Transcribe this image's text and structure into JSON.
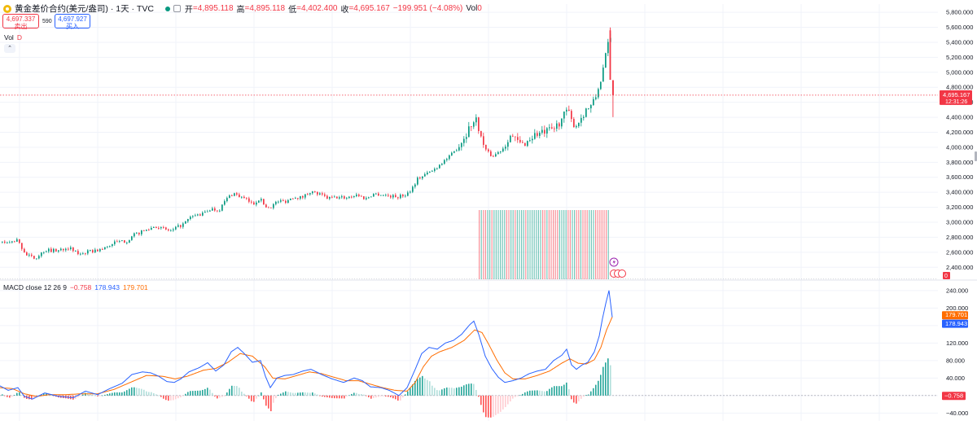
{
  "header": {
    "symbol": "黄金差价合约(美元/盎司) · 1天 · TVC",
    "open_label": "开",
    "open": "=4,895.118",
    "high_label": "高",
    "high": "=4,895.118",
    "low_label": "低",
    "low": "=4,402.400",
    "close_label": "收",
    "close": "=4,695.167",
    "change": "−199.951 (−4.08%)",
    "vol_label": "Vol",
    "vol_value": "0"
  },
  "trade": {
    "sell_price": "4,697.337",
    "sell_label": "卖出",
    "spread": "590",
    "buy_price": "4,697.927",
    "buy_label": "买入"
  },
  "volume_legend": {
    "label": "Vol",
    "value": "D"
  },
  "collapse_icon": "chevron-up-icon",
  "price_scale_label": "0",
  "macd_legend": {
    "name": "MACD close 12 26 9",
    "hist": "−0.758",
    "macd": "178.943",
    "signal": "179.701"
  },
  "colors": {
    "up": "#089981",
    "down": "#f23645",
    "macd": "#2962ff",
    "signal": "#ff6d00",
    "grid": "#f0f3fa",
    "text": "#131722"
  },
  "chart_data": [
    {
      "type": "candlestick",
      "title": "",
      "y_ticks": [
        2400,
        2600,
        2800,
        3000,
        3200,
        3400,
        3600,
        3800,
        4000,
        4200,
        4400,
        4600,
        4800,
        5000,
        5200,
        5400,
        5600,
        5800
      ],
      "y_tick_labels": [
        "2,400.000",
        "2,600.000",
        "2,800.000",
        "3,000.000",
        "3,200.000",
        "3,400.000",
        "3,600.000",
        "3,800.000",
        "4,000.000",
        "4,200.000",
        "4,400.000",
        "4,600.000",
        "4,800.000",
        "5,000.000",
        "5,200.000",
        "5,400.000",
        "5,600.000",
        "5,800.000"
      ],
      "ylim": [
        2240,
        5910
      ],
      "last_price": 4695.167,
      "last_price_label": "4,695.167",
      "countdown": "12:31:26",
      "grid": true,
      "path_keypoints": [
        [
          0,
          2740
        ],
        [
          10,
          2720
        ],
        [
          20,
          2760
        ],
        [
          32,
          2560
        ],
        [
          42,
          2520
        ],
        [
          55,
          2630
        ],
        [
          70,
          2620
        ],
        [
          82,
          2670
        ],
        [
          95,
          2580
        ],
        [
          110,
          2610
        ],
        [
          125,
          2640
        ],
        [
          140,
          2730
        ],
        [
          155,
          2750
        ],
        [
          165,
          2840
        ],
        [
          180,
          2900
        ],
        [
          190,
          2950
        ],
        [
          200,
          2910
        ],
        [
          210,
          2880
        ],
        [
          218,
          2940
        ],
        [
          225,
          2980
        ],
        [
          235,
          3080
        ],
        [
          248,
          3110
        ],
        [
          258,
          3180
        ],
        [
          268,
          3160
        ],
        [
          278,
          3320
        ],
        [
          286,
          3390
        ],
        [
          294,
          3340
        ],
        [
          302,
          3300
        ],
        [
          310,
          3240
        ],
        [
          318,
          3320
        ],
        [
          326,
          3200
        ],
        [
          332,
          3210
        ],
        [
          340,
          3280
        ],
        [
          350,
          3280
        ],
        [
          360,
          3340
        ],
        [
          370,
          3330
        ],
        [
          380,
          3410
        ],
        [
          392,
          3370
        ],
        [
          402,
          3320
        ],
        [
          412,
          3330
        ],
        [
          425,
          3330
        ],
        [
          438,
          3370
        ],
        [
          448,
          3310
        ],
        [
          458,
          3380
        ],
        [
          468,
          3370
        ],
        [
          478,
          3350
        ],
        [
          488,
          3340
        ],
        [
          498,
          3370
        ],
        [
          505,
          3450
        ],
        [
          512,
          3580
        ],
        [
          522,
          3640
        ],
        [
          532,
          3700
        ],
        [
          542,
          3800
        ],
        [
          552,
          3880
        ],
        [
          560,
          3980
        ],
        [
          570,
          4150
        ],
        [
          578,
          4310
        ],
        [
          585,
          4370
        ],
        [
          590,
          4120
        ],
        [
          597,
          3940
        ],
        [
          604,
          3880
        ],
        [
          612,
          3940
        ],
        [
          618,
          4000
        ],
        [
          625,
          4170
        ],
        [
          632,
          4100
        ],
        [
          640,
          4030
        ],
        [
          648,
          4090
        ],
        [
          656,
          4170
        ],
        [
          665,
          4190
        ],
        [
          672,
          4210
        ],
        [
          680,
          4250
        ],
        [
          688,
          4360
        ],
        [
          696,
          4500
        ],
        [
          702,
          4320
        ],
        [
          708,
          4300
        ],
        [
          714,
          4420
        ],
        [
          720,
          4520
        ],
        [
          726,
          4550
        ],
        [
          732,
          4700
        ],
        [
          738,
          4950
        ],
        [
          742,
          5150
        ],
        [
          746,
          5380
        ],
        [
          749,
          5450
        ],
        [
          751,
          4695
        ]
      ],
      "candles": [
        {
          "open": 4895.118,
          "high": 4895.118,
          "low": 4402.4,
          "close": 4695.167
        }
      ]
    },
    {
      "type": "bar",
      "title": "Vol",
      "note": "uniform volume bars across the recent sessions",
      "values": [
        1
      ]
    },
    {
      "type": "line",
      "title": "MACD close 12 26 9",
      "y_ticks": [
        -40,
        0,
        40,
        80,
        120,
        160,
        200,
        240
      ],
      "y_tick_labels": [
        "−40.000",
        "0",
        "40.000",
        "80.000",
        "120.000",
        "160.000",
        "200.000",
        "240.000"
      ],
      "ylim": [
        -58,
        262
      ],
      "grid": true,
      "series": [
        {
          "name": "MACD",
          "color": "#2962ff",
          "last": 178.943,
          "last_label": "178.943"
        },
        {
          "name": "Signal",
          "color": "#ff6d00",
          "last": 179.701,
          "last_label": "179.701"
        },
        {
          "name": "Histogram",
          "last": -0.758,
          "last_label": "−0.758"
        }
      ],
      "macd_keypoints": [
        [
          0,
          22
        ],
        [
          10,
          12
        ],
        [
          22,
          18
        ],
        [
          30,
          -2
        ],
        [
          40,
          -8
        ],
        [
          55,
          6
        ],
        [
          72,
          -2
        ],
        [
          90,
          -5
        ],
        [
          105,
          10
        ],
        [
          120,
          2
        ],
        [
          135,
          16
        ],
        [
          150,
          28
        ],
        [
          162,
          48
        ],
        [
          175,
          54
        ],
        [
          185,
          52
        ],
        [
          195,
          44
        ],
        [
          205,
          32
        ],
        [
          214,
          30
        ],
        [
          222,
          38
        ],
        [
          232,
          54
        ],
        [
          245,
          64
        ],
        [
          255,
          75
        ],
        [
          265,
          56
        ],
        [
          275,
          70
        ],
        [
          284,
          100
        ],
        [
          292,
          110
        ],
        [
          300,
          96
        ],
        [
          310,
          76
        ],
        [
          320,
          80
        ],
        [
          326,
          44
        ],
        [
          332,
          18
        ],
        [
          340,
          40
        ],
        [
          350,
          46
        ],
        [
          360,
          48
        ],
        [
          372,
          56
        ],
        [
          382,
          60
        ],
        [
          395,
          48
        ],
        [
          408,
          38
        ],
        [
          422,
          30
        ],
        [
          435,
          40
        ],
        [
          445,
          34
        ],
        [
          455,
          20
        ],
        [
          468,
          18
        ],
        [
          478,
          12
        ],
        [
          490,
          0
        ],
        [
          500,
          18
        ],
        [
          510,
          60
        ],
        [
          518,
          96
        ],
        [
          527,
          110
        ],
        [
          537,
          106
        ],
        [
          547,
          120
        ],
        [
          557,
          126
        ],
        [
          567,
          140
        ],
        [
          577,
          162
        ],
        [
          582,
          170
        ],
        [
          588,
          140
        ],
        [
          596,
          90
        ],
        [
          604,
          62
        ],
        [
          612,
          42
        ],
        [
          620,
          30
        ],
        [
          630,
          34
        ],
        [
          640,
          40
        ],
        [
          650,
          50
        ],
        [
          660,
          56
        ],
        [
          670,
          60
        ],
        [
          680,
          80
        ],
        [
          690,
          92
        ],
        [
          696,
          106
        ],
        [
          702,
          70
        ],
        [
          708,
          60
        ],
        [
          715,
          70
        ],
        [
          722,
          76
        ],
        [
          730,
          100
        ],
        [
          736,
          136
        ],
        [
          740,
          176
        ],
        [
          744,
          210
        ],
        [
          748,
          240
        ],
        [
          752,
          178.943
        ]
      ],
      "signal_keypoints": [
        [
          0,
          18
        ],
        [
          15,
          16
        ],
        [
          30,
          4
        ],
        [
          45,
          -2
        ],
        [
          60,
          2
        ],
        [
          80,
          2
        ],
        [
          100,
          4
        ],
        [
          120,
          4
        ],
        [
          140,
          14
        ],
        [
          160,
          30
        ],
        [
          180,
          46
        ],
        [
          200,
          44
        ],
        [
          215,
          38
        ],
        [
          230,
          44
        ],
        [
          250,
          58
        ],
        [
          265,
          62
        ],
        [
          280,
          76
        ],
        [
          295,
          96
        ],
        [
          310,
          90
        ],
        [
          325,
          66
        ],
        [
          335,
          40
        ],
        [
          350,
          38
        ],
        [
          365,
          46
        ],
        [
          380,
          54
        ],
        [
          395,
          50
        ],
        [
          410,
          42
        ],
        [
          425,
          34
        ],
        [
          440,
          34
        ],
        [
          455,
          26
        ],
        [
          470,
          18
        ],
        [
          485,
          12
        ],
        [
          500,
          10
        ],
        [
          510,
          30
        ],
        [
          520,
          66
        ],
        [
          530,
          90
        ],
        [
          540,
          100
        ],
        [
          555,
          110
        ],
        [
          570,
          126
        ],
        [
          583,
          150
        ],
        [
          592,
          144
        ],
        [
          600,
          118
        ],
        [
          610,
          82
        ],
        [
          620,
          52
        ],
        [
          630,
          38
        ],
        [
          645,
          38
        ],
        [
          660,
          46
        ],
        [
          675,
          56
        ],
        [
          690,
          74
        ],
        [
          700,
          84
        ],
        [
          710,
          74
        ],
        [
          720,
          72
        ],
        [
          730,
          82
        ],
        [
          738,
          110
        ],
        [
          745,
          150
        ],
        [
          752,
          179.701
        ]
      ]
    }
  ]
}
